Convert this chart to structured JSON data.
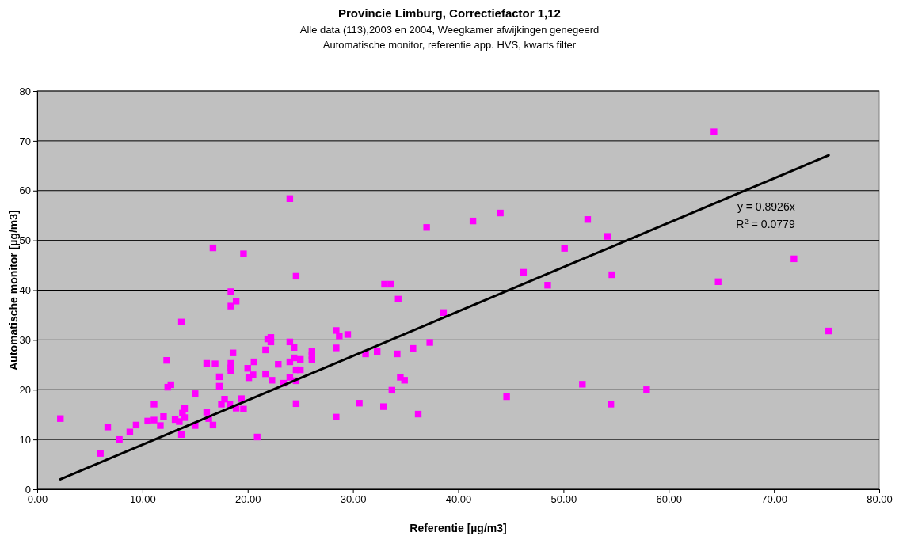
{
  "chart_data": {
    "type": "scatter",
    "title": "Provincie Limburg, Correctiefactor 1,12",
    "subtitle": "Alle data (113),2003 en 2004, Weegkamer afwijkingen genegeerd\nAutomatische monitor, referentie app. HVS, kwarts filter",
    "xlabel": "Referentie [µg/m3]",
    "ylabel": "Automatische monitor [µg/m3]",
    "xlim": [
      0,
      80
    ],
    "ylim": [
      0,
      80
    ],
    "xticks": [
      {
        "value": 0,
        "label": "0.00"
      },
      {
        "value": 10,
        "label": "10.00"
      },
      {
        "value": 20,
        "label": "20.00"
      },
      {
        "value": 30,
        "label": "30.00"
      },
      {
        "value": 40,
        "label": "40.00"
      },
      {
        "value": 50,
        "label": "50.00"
      },
      {
        "value": 60,
        "label": "60.00"
      },
      {
        "value": 70,
        "label": "70.00"
      },
      {
        "value": 80,
        "label": "80.00"
      }
    ],
    "yticks": [
      0,
      10,
      20,
      30,
      40,
      50,
      60,
      70,
      80
    ],
    "grid": "y",
    "marker": "square",
    "annotations": [
      "y = 0.8926x",
      "R$^{2}$ = 0.0779"
    ],
    "series": [
      {
        "color": "#ff00ff",
        "x": [
          2.2,
          6.0,
          6.7,
          7.8,
          8.8,
          9.4,
          10.5,
          11.1,
          11.1,
          11.7,
          12.0,
          12.3,
          12.4,
          12.7,
          13.1,
          13.5,
          13.7,
          13.7,
          13.8,
          14.0,
          14.0,
          15.0,
          15.0,
          16.1,
          16.1,
          16.3,
          16.7,
          16.7,
          16.9,
          17.3,
          17.3,
          17.5,
          17.8,
          18.3,
          18.4,
          18.4,
          18.4,
          18.4,
          18.4,
          18.6,
          18.9,
          18.9,
          19.4,
          19.6,
          19.6,
          20.0,
          20.1,
          20.5,
          20.6,
          20.9,
          21.7,
          21.7,
          21.9,
          22.2,
          22.2,
          22.3,
          22.9,
          23.4,
          24.0,
          24.0,
          24.0,
          24.0,
          24.4,
          24.4,
          24.6,
          24.6,
          24.6,
          24.6,
          25.0,
          25.0,
          26.1,
          26.1,
          26.1,
          28.4,
          28.4,
          28.4,
          28.7,
          29.5,
          30.6,
          31.2,
          32.3,
          32.9,
          33.0,
          33.6,
          33.7,
          34.2,
          34.3,
          34.5,
          34.9,
          35.7,
          36.2,
          37.0,
          37.3,
          38.6,
          41.4,
          44.0,
          44.6,
          46.2,
          48.5,
          50.1,
          51.8,
          52.3,
          54.2,
          54.5,
          54.6,
          57.9,
          64.3,
          64.7,
          71.9,
          75.2
        ],
        "values": [
          14.2,
          7.2,
          12.5,
          10.0,
          11.5,
          12.9,
          13.7,
          17.1,
          13.9,
          12.8,
          14.6,
          25.9,
          20.5,
          21.0,
          14.0,
          13.6,
          33.6,
          11.0,
          15.3,
          16.2,
          14.4,
          19.2,
          12.8,
          25.3,
          15.5,
          14.2,
          12.9,
          48.5,
          25.2,
          22.6,
          20.7,
          17.1,
          18.1,
          17.0,
          36.8,
          39.7,
          25.3,
          24.4,
          23.8,
          27.4,
          37.8,
          16.3,
          18.2,
          16.1,
          47.3,
          24.3,
          22.4,
          23.0,
          25.6,
          10.5,
          28.0,
          23.2,
          30.2,
          30.5,
          29.6,
          21.9,
          25.1,
          21.3,
          58.4,
          29.6,
          25.6,
          22.5,
          26.4,
          28.5,
          24.0,
          42.8,
          21.8,
          17.2,
          26.1,
          24.0,
          27.7,
          26.9,
          26.0,
          31.9,
          28.4,
          14.5,
          30.8,
          31.1,
          17.3,
          27.2,
          27.7,
          16.6,
          41.2,
          41.2,
          19.9,
          27.2,
          38.2,
          22.5,
          21.9,
          28.3,
          15.1,
          52.6,
          29.5,
          35.5,
          53.9,
          55.5,
          18.6,
          43.6,
          41.0,
          48.4,
          21.1,
          54.2,
          50.8,
          17.1,
          43.1,
          20.0,
          71.8,
          41.7,
          46.3,
          31.8
        ]
      },
      {
        "type": "line",
        "color": "#000000",
        "line_style": "solid",
        "marker": "none",
        "x": [
          2.2,
          75.2
        ],
        "values": [
          2.0,
          67.1
        ]
      }
    ]
  }
}
